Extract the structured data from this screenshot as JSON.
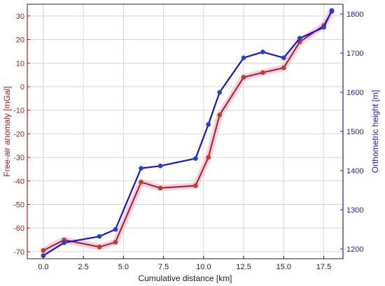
{
  "chart_data": {
    "type": "line",
    "xlabel": "Cumulative distance [km]",
    "ylabel_left": "Free-air anomaly [mGal]",
    "ylabel_right": "Orthometric height [m]",
    "xlim": [
      -1,
      18.7
    ],
    "xticks": [
      0,
      2.5,
      5,
      7.5,
      10,
      12.5,
      15,
      17.5
    ],
    "xtick_labels": [
      "0.0",
      "2.5",
      "5.0",
      "7.5",
      "10.0",
      "12.5",
      "15.0",
      "17.5"
    ],
    "ylim_left": [
      -73,
      35
    ],
    "yticks_left": [
      30,
      20,
      10,
      0,
      -10,
      -20,
      -30,
      -40,
      -50,
      -60,
      -70
    ],
    "ylim_right": [
      1175,
      1825
    ],
    "yticks_right": [
      1800,
      1700,
      1600,
      1500,
      1400,
      1300,
      1200
    ],
    "grid": true,
    "colors": {
      "left_axis": "#b01c1c",
      "right_axis": "#1a1ad6",
      "red_series": "#a52020",
      "red_marker": "#c23a2a",
      "blue_series": "#1414e6",
      "blue_marker": "#1f3fd8",
      "highlight": "#f5c8dc",
      "grid": "#d6d6d6",
      "frame": "#222222"
    },
    "series": [
      {
        "axis": "left",
        "x": [
          0.0,
          1.3,
          3.5,
          4.5,
          6.1,
          7.3,
          9.5,
          10.3,
          11.0,
          12.5,
          13.7,
          15.0,
          16.0,
          17.5,
          18.0
        ],
        "y": [
          -69.5,
          -65,
          -68,
          -66,
          -40.5,
          -43,
          -42,
          -30,
          -12,
          4,
          6,
          8,
          19,
          26,
          32
        ]
      },
      {
        "axis": "right",
        "x": [
          0.0,
          1.3,
          3.5,
          4.5,
          6.1,
          7.3,
          9.5,
          10.3,
          11.0,
          12.5,
          13.7,
          15.0,
          16.0,
          17.5,
          18.0
        ],
        "y": [
          1183,
          1216,
          1232,
          1250,
          1406,
          1412,
          1431,
          1518,
          1600,
          1688,
          1703,
          1688,
          1738,
          1766,
          1809
        ]
      }
    ]
  }
}
